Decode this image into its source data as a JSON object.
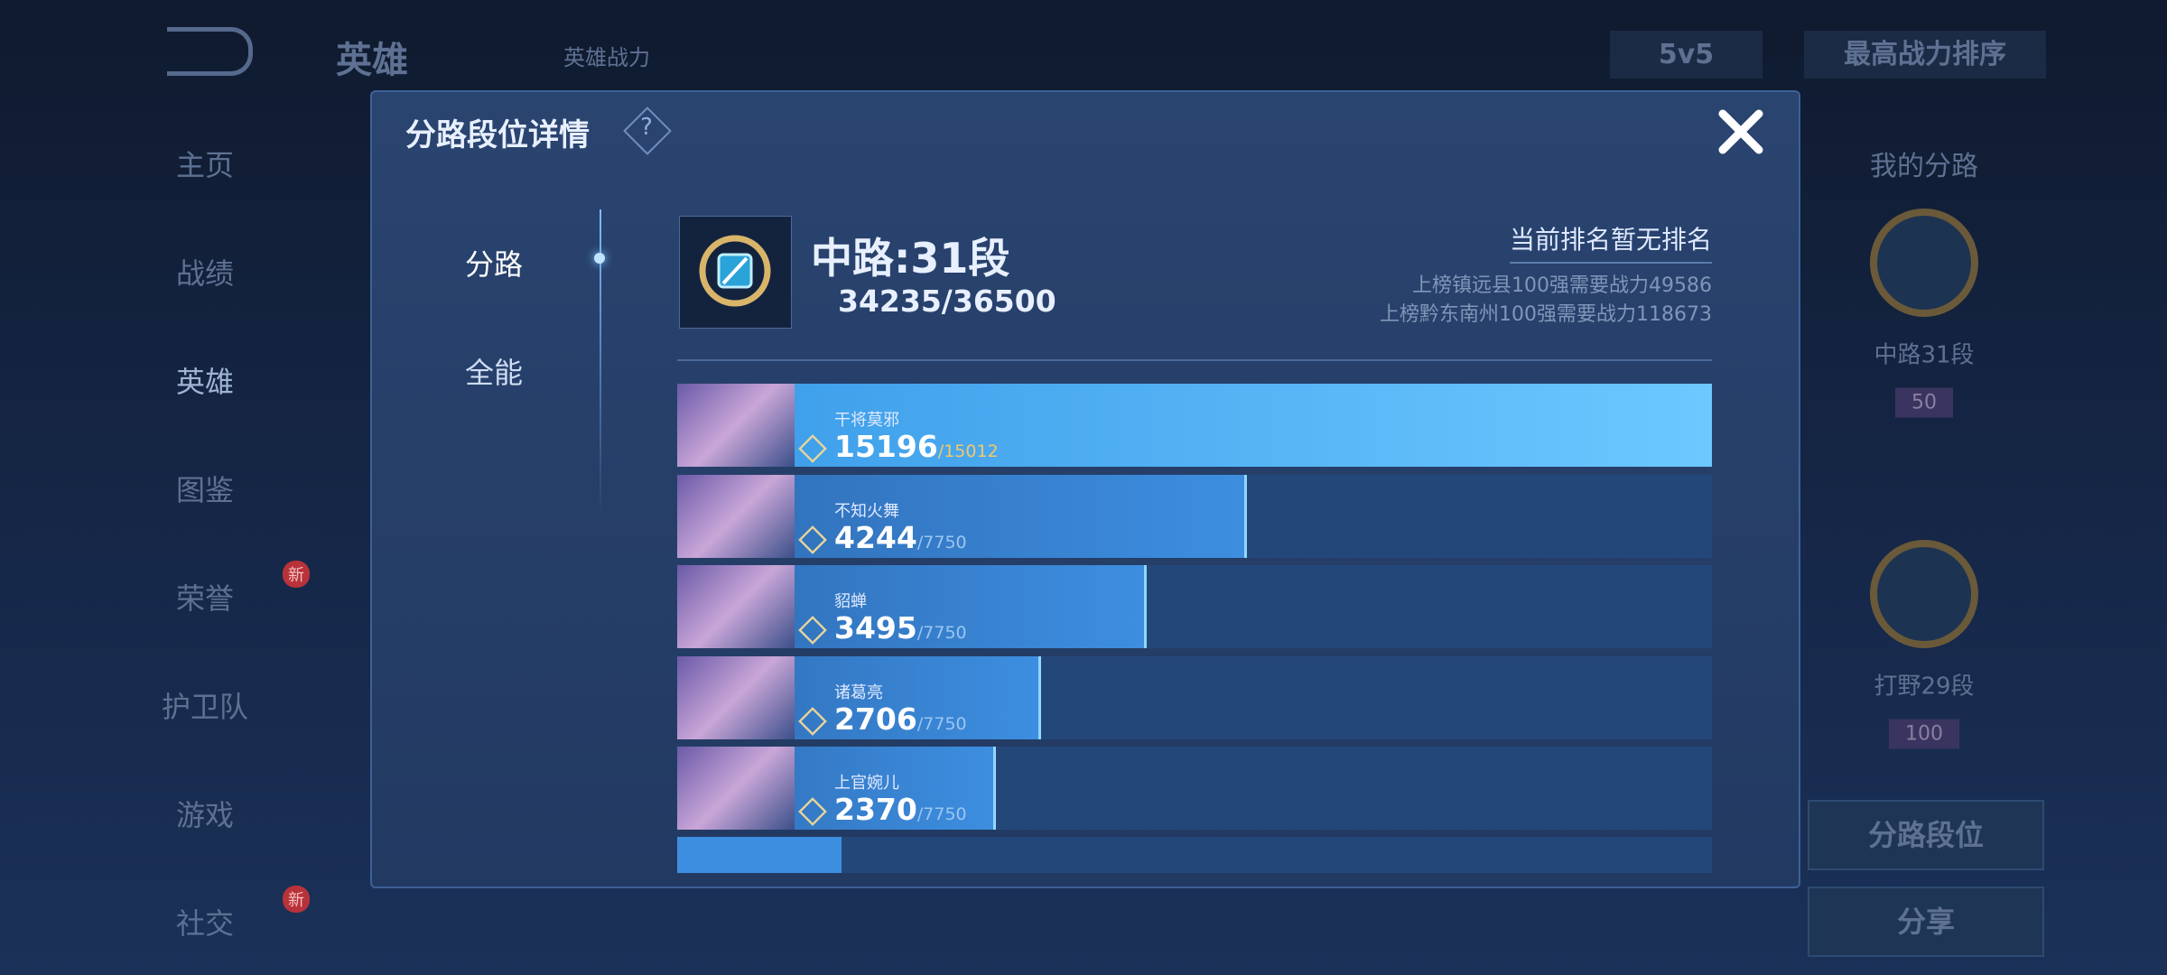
{
  "top_bar": {
    "title": "英雄",
    "power_label": "英雄战力",
    "mode": "5v5",
    "sort": "最高战力排序"
  },
  "side_menu": [
    {
      "label": "主页"
    },
    {
      "label": "战绩"
    },
    {
      "label": "英雄"
    },
    {
      "label": "图鉴"
    },
    {
      "label": "荣誉",
      "badge": "新"
    },
    {
      "label": "护卫队"
    },
    {
      "label": "游戏"
    },
    {
      "label": "社交",
      "badge": "新"
    }
  ],
  "right_panel": {
    "title": "我的分路",
    "lanes": [
      {
        "label": "中路31段",
        "badge": "50"
      },
      {
        "label": "打野29段",
        "badge": "100"
      }
    ],
    "buttons": [
      "分路段位",
      "分享"
    ]
  },
  "modal": {
    "title": "分路段位详情",
    "help": "?",
    "tabs": [
      "分路",
      "全能"
    ],
    "lane": {
      "title": "中路:31段",
      "power": "34235/36500"
    },
    "rank": {
      "status": "当前排名暂无排名",
      "requirements": [
        "上榜镇远县100强需要战力49586",
        "上榜黔东南州100强需要战力118673"
      ]
    },
    "heroes": [
      {
        "name": "干将莫邪",
        "score": 15196,
        "max": {
          "value": 15012,
          "label": "/15012"
        }
      },
      {
        "name": "不知火舞",
        "score": 4244,
        "max": {
          "value": 7750,
          "label": "/7750"
        }
      },
      {
        "name": "貂蝉",
        "score": 3495,
        "max": {
          "value": 7750,
          "label": "/7750"
        }
      },
      {
        "name": "诸葛亮",
        "score": 2706,
        "max": {
          "value": 7750,
          "label": "/7750"
        }
      },
      {
        "name": "上官婉儿",
        "score": 2370,
        "max": {
          "value": 7750,
          "label": "/7750"
        }
      }
    ]
  }
}
